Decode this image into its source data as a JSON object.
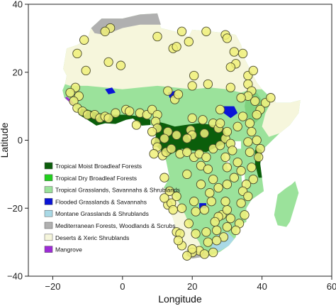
{
  "chart_data": {
    "type": "scatter",
    "xlabel": "Longitude",
    "ylabel": "Latitude",
    "xlim": [
      -27,
      60
    ],
    "ylim": [
      -40,
      40
    ],
    "xticks": [
      -20,
      0,
      20,
      40,
      60
    ],
    "yticks": [
      -40,
      -20,
      0,
      20,
      40
    ],
    "xtick_labels": [
      "−20",
      "0",
      "20",
      "40",
      "60"
    ],
    "ytick_labels": [
      "−40",
      "−20",
      "0",
      "20",
      "40"
    ],
    "grid": false,
    "legend_position": "lower-left",
    "legend": [
      {
        "label": "Tropical Moist Broadleaf Forests",
        "color": "#0b5e0b"
      },
      {
        "label": "Tropical Dry Broadleaf Forests",
        "color": "#22d01e"
      },
      {
        "label": "Tropical Grasslands, Savannahs & Shrublands",
        "color": "#9be29b"
      },
      {
        "label": "Flooded Grasslands & Savannahs",
        "color": "#0a14d6"
      },
      {
        "label": "Montane Grasslands & Shrublands",
        "color": "#a9d9e6"
      },
      {
        "label": "Mediterranean Forests, Woodlands & Scrubs",
        "color": "#b0b0b0"
      },
      {
        "label": "Deserts & Xeric Shrublands",
        "color": "#f6f6dc"
      },
      {
        "label": "Mangrove",
        "color": "#9d2bd6"
      }
    ],
    "marker_color": "#f0f07a",
    "marker_edge": "#4a4a2a",
    "points": [
      [
        -3.5,
        33
      ],
      [
        -5,
        32
      ],
      [
        -11,
        29.5
      ],
      [
        -13,
        25.5
      ],
      [
        -4,
        23
      ],
      [
        -10.5,
        20.5
      ],
      [
        -13.5,
        15.5
      ],
      [
        -15,
        14
      ],
      [
        -12.5,
        13
      ],
      [
        -14,
        11.5
      ],
      [
        -13,
        9.5
      ],
      [
        -11.5,
        8.5
      ],
      [
        -10,
        7.5
      ],
      [
        -8,
        7.5
      ],
      [
        -6.5,
        6.5
      ],
      [
        -5,
        7
      ],
      [
        -4,
        6.5
      ],
      [
        -2,
        8
      ],
      [
        1,
        9
      ],
      [
        2,
        8.5
      ],
      [
        5,
        8
      ],
      [
        7,
        7.5
      ],
      [
        8.5,
        9
      ],
      [
        10,
        7.5
      ],
      [
        -0.5,
        22
      ],
      [
        10,
        30.5
      ],
      [
        14.5,
        27
      ],
      [
        15.5,
        27.5
      ],
      [
        17,
        32
      ],
      [
        19,
        29
      ],
      [
        24,
        32
      ],
      [
        29.5,
        31
      ],
      [
        30,
        30
      ],
      [
        32,
        26
      ],
      [
        32.5,
        22.5
      ],
      [
        31,
        21.5
      ],
      [
        34.5,
        25.5
      ],
      [
        36,
        19
      ],
      [
        37.5,
        20.5
      ],
      [
        36,
        16.5
      ],
      [
        37,
        14.5
      ],
      [
        36,
        13
      ],
      [
        34,
        12.5
      ],
      [
        38,
        11.5
      ],
      [
        41,
        11
      ],
      [
        42.5,
        12.5
      ],
      [
        39.5,
        9
      ],
      [
        38.5,
        7.5
      ],
      [
        36.5,
        5
      ],
      [
        37,
        2.5
      ],
      [
        38.5,
        0
      ],
      [
        39.5,
        -2.5
      ],
      [
        39,
        -5
      ],
      [
        37,
        -8
      ],
      [
        37.5,
        -11.5
      ],
      [
        35.5,
        -13
      ],
      [
        34.5,
        -15
      ],
      [
        36,
        -16.5
      ],
      [
        34,
        -18.5
      ],
      [
        35,
        -22
      ],
      [
        33.5,
        -24.5
      ],
      [
        32.5,
        -26.5
      ],
      [
        30,
        -25.5
      ],
      [
        28.5,
        -22
      ],
      [
        30,
        -20.5
      ],
      [
        29.5,
        -18
      ],
      [
        27.5,
        -22.5
      ],
      [
        26.5,
        -24
      ],
      [
        29,
        -28.5
      ],
      [
        27,
        -29.5
      ],
      [
        24.5,
        -30
      ],
      [
        22,
        -32.5
      ],
      [
        20,
        -33
      ],
      [
        18.5,
        -34
      ],
      [
        20,
        -32
      ],
      [
        17,
        -31
      ],
      [
        15.5,
        -27
      ],
      [
        16.5,
        -27.5
      ],
      [
        13,
        -19
      ],
      [
        14,
        -18.5
      ],
      [
        13.5,
        -15
      ],
      [
        12,
        -17
      ],
      [
        15.5,
        -16.5
      ],
      [
        14.5,
        -20.5
      ],
      [
        19.5,
        3
      ],
      [
        20,
        6.5
      ],
      [
        23,
        6
      ],
      [
        26,
        5
      ],
      [
        27.5,
        3.5
      ],
      [
        28,
        5
      ],
      [
        23.5,
        2
      ],
      [
        20,
        1.5
      ],
      [
        18.5,
        0.5
      ],
      [
        15.5,
        1.5
      ],
      [
        13,
        2.5
      ],
      [
        12,
        0.5
      ],
      [
        9.5,
        -0.5
      ],
      [
        10,
        -2
      ],
      [
        9,
        -4
      ],
      [
        11.5,
        -4.5
      ],
      [
        12.5,
        -3.5
      ],
      [
        14,
        -2.5
      ],
      [
        16.5,
        -4
      ],
      [
        18.5,
        -3.5
      ],
      [
        20.5,
        -5
      ],
      [
        22,
        -4
      ],
      [
        24,
        -5
      ],
      [
        26,
        -2.5
      ],
      [
        28,
        -1.5
      ],
      [
        29.5,
        0.5
      ],
      [
        30,
        2.5
      ],
      [
        31,
        -1
      ],
      [
        31.5,
        -3
      ],
      [
        29.5,
        -5
      ],
      [
        30,
        -8
      ],
      [
        33,
        -6.5
      ],
      [
        34,
        -9
      ],
      [
        32,
        -11
      ],
      [
        30,
        -13
      ],
      [
        26,
        -11.5
      ],
      [
        27.5,
        -14
      ],
      [
        25,
        -15.5
      ],
      [
        22.5,
        -13
      ],
      [
        12,
        -11
      ],
      [
        9.5,
        5.5
      ],
      [
        4,
        4.5
      ],
      [
        10,
        3.5
      ],
      [
        8.5,
        2.5
      ],
      [
        34.5,
        7
      ],
      [
        33,
        4
      ],
      [
        28,
        9
      ],
      [
        31,
        15.5
      ],
      [
        20,
        16
      ],
      [
        20.5,
        19
      ],
      [
        24.5,
        16.5
      ],
      [
        13,
        14.5
      ],
      [
        15,
        12
      ],
      [
        16,
        13.5
      ],
      [
        22.5,
        -7.5
      ],
      [
        18.5,
        -10
      ],
      [
        24.5,
        -8.5
      ],
      [
        36.5,
        -3.5
      ],
      [
        36,
        -0.5
      ],
      [
        23.5,
        -20.5
      ],
      [
        25.5,
        -18
      ],
      [
        31,
        -23
      ],
      [
        21,
        -21
      ],
      [
        20.5,
        -18
      ],
      [
        17,
        -20
      ],
      [
        19,
        -24.5
      ],
      [
        24,
        -27
      ],
      [
        21,
        -27.5
      ],
      [
        27,
        -26.5
      ],
      [
        26,
        -33
      ],
      [
        23.5,
        -33.5
      ],
      [
        16,
        -29.5
      ]
    ]
  }
}
